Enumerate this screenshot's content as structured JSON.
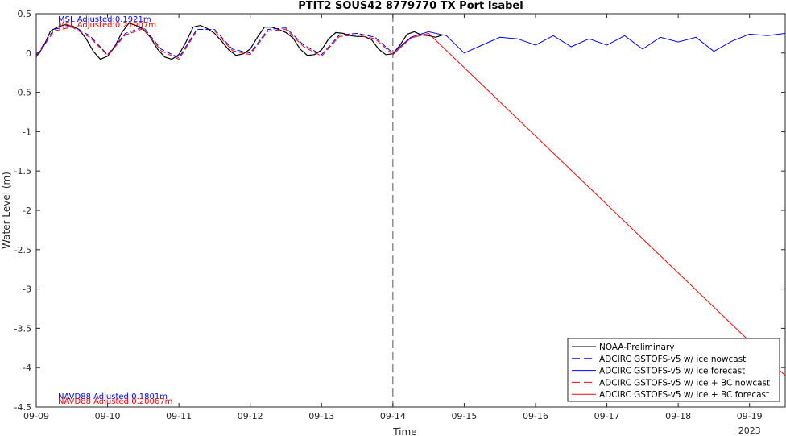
{
  "chart_data": {
    "type": "line",
    "title": "PTIT2 SOUS42 8779770 TX Port Isabel",
    "xlabel": "Time",
    "ylabel": "Water Level (m)",
    "x_unit": "days since 2023-09-09 00:00",
    "xlim": [
      0,
      10.5
    ],
    "ylim": [
      -4.5,
      0.5
    ],
    "x_ticks": [
      {
        "v": 0,
        "label": "09-09"
      },
      {
        "v": 1,
        "label": "09-10"
      },
      {
        "v": 2,
        "label": "09-11"
      },
      {
        "v": 3,
        "label": "09-12"
      },
      {
        "v": 4,
        "label": "09-13"
      },
      {
        "v": 5,
        "label": "09-14"
      },
      {
        "v": 6,
        "label": "09-15"
      },
      {
        "v": 7,
        "label": "09-16"
      },
      {
        "v": 8,
        "label": "09-17"
      },
      {
        "v": 9,
        "label": "09-18"
      },
      {
        "v": 10,
        "label": "09-19"
      }
    ],
    "year_label": "2023",
    "y_ticks": [
      0.5,
      0,
      -0.5,
      -1,
      -1.5,
      -2,
      -2.5,
      -3,
      -3.5,
      -4,
      -4.5
    ],
    "y_tick_labels": [
      "0.5",
      "0",
      "-0.5",
      "-1",
      "-1.5",
      "-2",
      "-2.5",
      "-3",
      "-3.5",
      "-4",
      "-4.5"
    ],
    "nowcast_divider_x": 5,
    "annotations": {
      "msl_blue": "MSL Adjusted:0.1921m",
      "msl_red": "MSL Adjusted:0.21007m",
      "navd_blue": "NAVD88 Adjusted:0.1801m",
      "navd_red": "NAVD88 Adjusted:0.20067m"
    },
    "legend_position": "bottom-right",
    "series": [
      {
        "name": "NOAA-Preliminary",
        "color": "#000000",
        "style": "solid",
        "x": [
          0,
          0.1,
          0.2,
          0.3,
          0.4,
          0.5,
          0.6,
          0.7,
          0.8,
          0.9,
          1.0,
          1.1,
          1.2,
          1.3,
          1.4,
          1.5,
          1.6,
          1.7,
          1.8,
          1.9,
          2.0,
          2.1,
          2.2,
          2.3,
          2.4,
          2.5,
          2.6,
          2.7,
          2.8,
          2.9,
          3.0,
          3.1,
          3.2,
          3.3,
          3.4,
          3.5,
          3.6,
          3.7,
          3.8,
          3.9,
          4.0,
          4.1,
          4.2,
          4.3,
          4.4,
          4.5,
          4.6,
          4.7,
          4.8,
          4.9,
          5.0,
          5.1,
          5.2,
          5.3,
          5.4,
          5.5,
          5.6,
          5.7
        ],
        "y": [
          -0.05,
          0.08,
          0.28,
          0.33,
          0.36,
          0.34,
          0.3,
          0.18,
          0.02,
          -0.08,
          -0.04,
          0.08,
          0.26,
          0.38,
          0.35,
          0.3,
          0.2,
          0.05,
          -0.05,
          -0.08,
          -0.02,
          0.14,
          0.33,
          0.35,
          0.31,
          0.25,
          0.15,
          0.04,
          -0.03,
          -0.01,
          0.05,
          0.2,
          0.33,
          0.33,
          0.3,
          0.26,
          0.19,
          0.05,
          -0.03,
          -0.02,
          0.04,
          0.18,
          0.26,
          0.25,
          0.22,
          0.21,
          0.21,
          0.17,
          0.05,
          -0.02,
          -0.01,
          0.1,
          0.24,
          0.27,
          0.23,
          0.22,
          0.2,
          0.23
        ]
      },
      {
        "name": "ADCIRC GSTOFS-v5 w/ ice nowcast",
        "color": "#0000ff",
        "style": "dashed",
        "x": [
          0,
          0.25,
          0.5,
          0.75,
          1.0,
          1.25,
          1.5,
          1.75,
          2.0,
          2.25,
          2.5,
          2.75,
          3.0,
          3.25,
          3.5,
          3.75,
          4.0,
          4.25,
          4.5,
          4.75,
          5.0
        ],
        "y": [
          -0.03,
          0.3,
          0.35,
          0.22,
          -0.02,
          0.25,
          0.33,
          0.05,
          -0.06,
          0.3,
          0.3,
          0.05,
          0.0,
          0.3,
          0.32,
          0.1,
          -0.02,
          0.23,
          0.25,
          0.2,
          0.0
        ]
      },
      {
        "name": "ADCIRC GSTOFS-v5 w/ ice forecast",
        "color": "#0000ff",
        "style": "solid",
        "x": [
          5.0,
          5.25,
          5.5,
          5.75,
          6.0,
          6.25,
          6.5,
          6.75,
          7.0,
          7.25,
          7.5,
          7.75,
          8.0,
          8.25,
          8.5,
          8.75,
          9.0,
          9.25,
          9.5,
          9.75,
          10.0,
          10.25,
          10.5
        ],
        "y": [
          0.0,
          0.2,
          0.27,
          0.22,
          0.0,
          0.1,
          0.2,
          0.18,
          0.1,
          0.22,
          0.08,
          0.18,
          0.1,
          0.22,
          0.05,
          0.2,
          0.14,
          0.2,
          0.02,
          0.15,
          0.24,
          0.22,
          0.25
        ]
      },
      {
        "name": "ADCIRC GSTOFS-v5 w/ ice + BC nowcast",
        "color": "#ff0000",
        "style": "dashed",
        "x": [
          0,
          0.25,
          0.5,
          0.75,
          1.0,
          1.25,
          1.5,
          1.75,
          2.0,
          2.25,
          2.5,
          2.75,
          3.0,
          3.25,
          3.5,
          3.75,
          4.0,
          4.25,
          4.5,
          4.75,
          5.0
        ],
        "y": [
          -0.05,
          0.28,
          0.33,
          0.2,
          -0.03,
          0.23,
          0.31,
          0.03,
          -0.08,
          0.28,
          0.28,
          0.03,
          -0.02,
          0.28,
          0.3,
          0.08,
          -0.04,
          0.21,
          0.23,
          0.18,
          -0.02
        ]
      },
      {
        "name": "ADCIRC GSTOFS-v5 w/ ice + BC forecast",
        "color": "#ff0000",
        "style": "solid",
        "x": [
          5.0,
          5.25,
          5.5,
          10.5
        ],
        "y": [
          -0.02,
          0.19,
          0.25,
          -4.1
        ]
      }
    ]
  }
}
